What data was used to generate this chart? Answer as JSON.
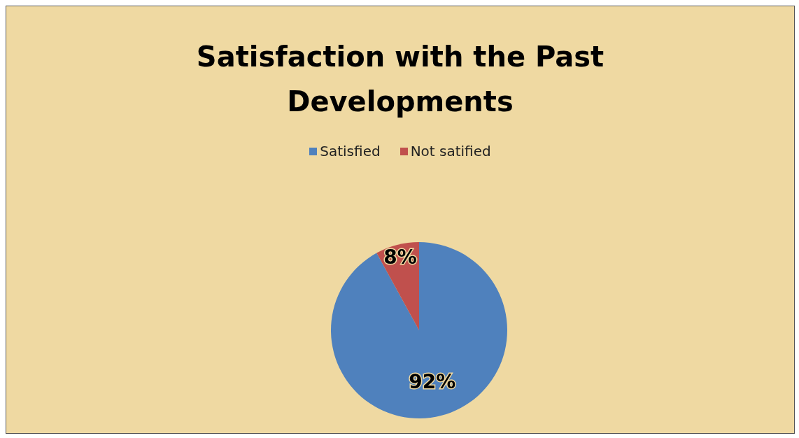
{
  "chart_data": {
    "type": "pie",
    "title": "Satisfaction with the Past Developments",
    "categories": [
      "Satisfied",
      "Not satified"
    ],
    "values": [
      92,
      8
    ],
    "colors": [
      "#4f81bd",
      "#c0504d"
    ],
    "value_labels": [
      "92%",
      "8%"
    ],
    "legend": "top"
  }
}
